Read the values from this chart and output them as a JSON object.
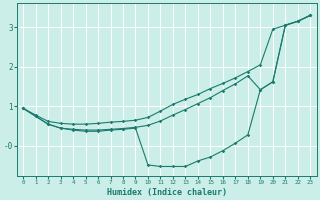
{
  "xlabel": "Humidex (Indice chaleur)",
  "bg_color": "#cceee8",
  "grid_color": "#ffffff",
  "line_color": "#1a7a6e",
  "xlim": [
    -0.5,
    23.5
  ],
  "ylim": [
    -0.75,
    3.6
  ],
  "yticks": [
    0,
    1,
    2,
    3
  ],
  "ytick_labels": [
    "-0",
    "1",
    "2",
    "3"
  ],
  "xticks": [
    0,
    1,
    2,
    3,
    4,
    5,
    6,
    7,
    8,
    9,
    10,
    11,
    12,
    13,
    14,
    15,
    16,
    17,
    18,
    19,
    20,
    21,
    22,
    23
  ],
  "line1_x": [
    0,
    1,
    2,
    3,
    4,
    5,
    6,
    7,
    8,
    9,
    10,
    11,
    12,
    13,
    14,
    15,
    16,
    17,
    18,
    19,
    20,
    21,
    22,
    23
  ],
  "line1_y": [
    0.95,
    0.78,
    0.62,
    0.57,
    0.55,
    0.55,
    0.57,
    0.6,
    0.62,
    0.65,
    0.72,
    0.88,
    1.05,
    1.18,
    1.3,
    1.45,
    1.58,
    1.72,
    1.88,
    2.05,
    2.95,
    3.05,
    3.15,
    3.3
  ],
  "line2_x": [
    0,
    1,
    2,
    3,
    4,
    5,
    6,
    7,
    8,
    9,
    10,
    11,
    12,
    13,
    14,
    15,
    16,
    17,
    18,
    19,
    20,
    21,
    22,
    23
  ],
  "line2_y": [
    0.95,
    0.75,
    0.55,
    0.45,
    0.4,
    0.37,
    0.37,
    0.4,
    0.42,
    0.45,
    -0.48,
    -0.52,
    -0.52,
    -0.52,
    -0.38,
    -0.28,
    -0.12,
    0.07,
    0.28,
    1.42,
    1.62,
    3.05,
    3.15,
    3.3
  ],
  "line3_x": [
    0,
    1,
    2,
    3,
    4,
    5,
    6,
    7,
    8,
    9,
    10,
    11,
    12,
    13,
    14,
    15,
    16,
    17,
    18,
    19,
    20,
    21,
    22,
    23
  ],
  "line3_y": [
    0.95,
    0.75,
    0.55,
    0.45,
    0.42,
    0.4,
    0.4,
    0.42,
    0.44,
    0.47,
    0.52,
    0.63,
    0.78,
    0.92,
    1.07,
    1.22,
    1.4,
    1.57,
    1.77,
    1.42,
    1.62,
    3.05,
    3.15,
    3.3
  ]
}
